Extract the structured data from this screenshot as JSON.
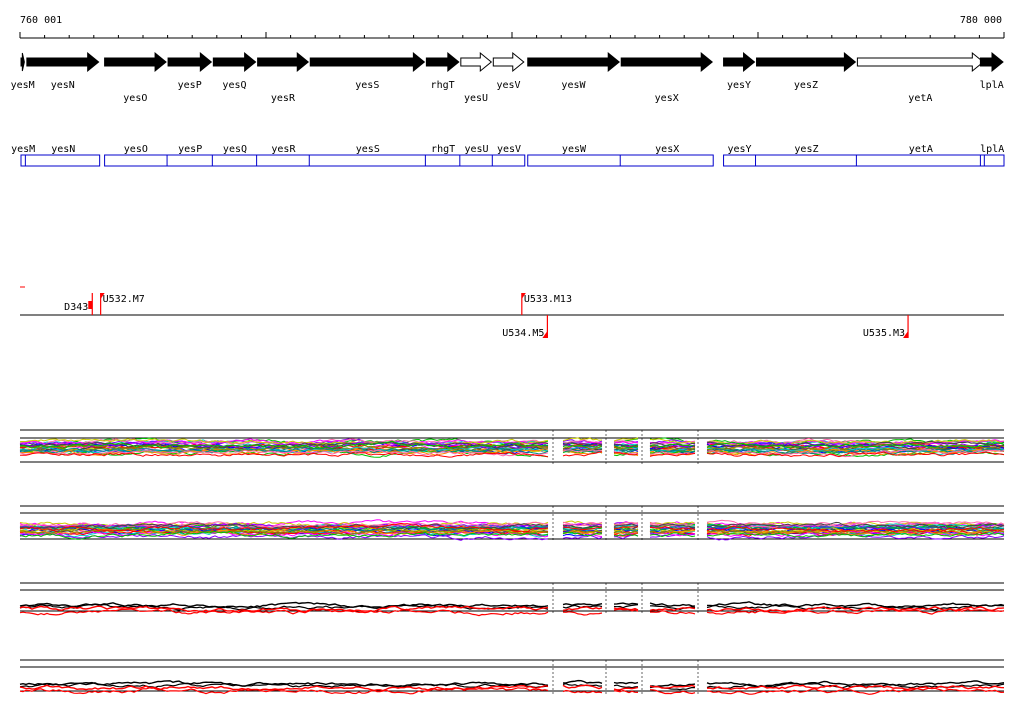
{
  "ruler": {
    "start_label": "760 001",
    "end_label": "780 000"
  },
  "genes": [
    {
      "name": "yesM",
      "start": 760001,
      "end": 760110,
      "strand": "+",
      "filled": true,
      "label_row": 0
    },
    {
      "name": "yesN",
      "start": 760120,
      "end": 761620,
      "strand": "+",
      "filled": true,
      "label_row": 0
    },
    {
      "name": "yesO",
      "start": 761700,
      "end": 762990,
      "strand": "+",
      "filled": true,
      "label_row": 1
    },
    {
      "name": "yesP",
      "start": 762990,
      "end": 763910,
      "strand": "+",
      "filled": true,
      "label_row": 0
    },
    {
      "name": "yesQ",
      "start": 763910,
      "end": 764810,
      "strand": "+",
      "filled": true,
      "label_row": 0
    },
    {
      "name": "yesR",
      "start": 764810,
      "end": 765880,
      "strand": "+",
      "filled": true,
      "label_row": 1
    },
    {
      "name": "yesS",
      "start": 765880,
      "end": 768240,
      "strand": "+",
      "filled": true,
      "label_row": 0
    },
    {
      "name": "rhgT",
      "start": 768240,
      "end": 768940,
      "strand": "+",
      "filled": true,
      "label_row": 0
    },
    {
      "name": "yesU",
      "start": 768940,
      "end": 769600,
      "strand": "+",
      "filled": false,
      "label_row": 1
    },
    {
      "name": "yesV",
      "start": 769600,
      "end": 770260,
      "strand": "+",
      "filled": false,
      "label_row": 0
    },
    {
      "name": "yesW",
      "start": 770300,
      "end": 772200,
      "strand": "+",
      "filled": true,
      "label_row": 0
    },
    {
      "name": "yesX",
      "start": 772200,
      "end": 774090,
      "strand": "+",
      "filled": true,
      "label_row": 1
    },
    {
      "name": "yesY",
      "start": 774280,
      "end": 774950,
      "strand": "+",
      "filled": true,
      "label_row": 0
    },
    {
      "name": "yesZ",
      "start": 774950,
      "end": 777000,
      "strand": "+",
      "filled": true,
      "label_row": 0
    },
    {
      "name": "yetA",
      "start": 777000,
      "end": 779600,
      "strand": "+",
      "filled": false,
      "label_row": 1
    },
    {
      "name": "lplA",
      "start": 779500,
      "end": 780000,
      "strand": "+",
      "filled": true,
      "label_row": 0
    }
  ],
  "transcripts": [
    {
      "labels": [
        "yesM",
        "yesN"
      ],
      "start": 760001,
      "end": 761620
    },
    {
      "labels": [
        "yesO",
        "yesP",
        "yesQ",
        "yesR",
        "yesS",
        "rhgT",
        "yesU",
        "yesV"
      ],
      "start": 761700,
      "end": 770260
    },
    {
      "labels": [
        "yesW",
        "yesX"
      ],
      "start": 770300,
      "end": 774090
    },
    {
      "labels": [
        "yesY",
        "yesZ",
        "yetA"
      ],
      "start": 774280,
      "end": 779600
    },
    {
      "labels": [
        "lplA"
      ],
      "start": 779500,
      "end": 780000
    }
  ],
  "markers": [
    {
      "name": "D343",
      "pos": 761470,
      "side": "above",
      "flag": "left"
    },
    {
      "name": "U532.M7",
      "pos": 761640,
      "side": "above",
      "flag": "right"
    },
    {
      "name": "U533.M13",
      "pos": 770200,
      "side": "above",
      "flag": "right"
    },
    {
      "name": "U534.M5",
      "pos": 770720,
      "side": "below",
      "flag": "left"
    },
    {
      "name": "U535.M3",
      "pos": 778050,
      "side": "below",
      "flag": "left"
    }
  ],
  "colors": {
    "gene_fill": "#000000",
    "transcript_box": "#0000cc",
    "marker": "#ff0000",
    "profile_palette": [
      "#ff0000",
      "#00c000",
      "#0000ff",
      "#ff00ff",
      "#00cccc",
      "#cccc00",
      "#ff8800",
      "#8800ff",
      "#008888",
      "#888800",
      "#ff66aa",
      "#444444"
    ]
  }
}
